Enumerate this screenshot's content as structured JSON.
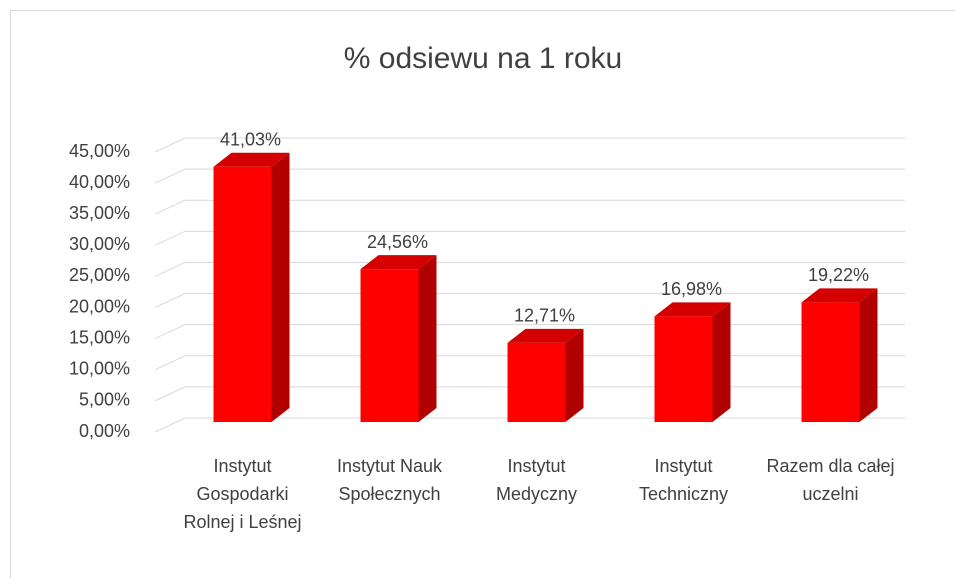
{
  "chart_data": {
    "type": "bar3d",
    "title": "% odsiewu na 1 roku",
    "categories": [
      "Instytut Gospodarki Rolnej i Leśnej",
      "Instytut Nauk Społecznych",
      "Instytut Medyczny",
      "Instytut Techniczny",
      "Razem dla całej uczelni"
    ],
    "values": [
      41.03,
      24.56,
      12.71,
      16.98,
      19.22
    ],
    "value_labels": [
      "41,03%",
      "24,56%",
      "12,71%",
      "16,98%",
      "19,22%"
    ],
    "color": "#ff0000",
    "ylim": [
      0,
      45
    ],
    "yticks": [
      {
        "value": 0,
        "label": "0,00%"
      },
      {
        "value": 5,
        "label": "5,00%"
      },
      {
        "value": 10,
        "label": "10,00%"
      },
      {
        "value": 15,
        "label": "15,00%"
      },
      {
        "value": 20,
        "label": "20,00%"
      },
      {
        "value": 25,
        "label": "25,00%"
      },
      {
        "value": 30,
        "label": "30,00%"
      },
      {
        "value": 35,
        "label": "35,00%"
      },
      {
        "value": 40,
        "label": "40,00%"
      },
      {
        "value": 45,
        "label": "45,00%"
      }
    ],
    "grid": true
  }
}
